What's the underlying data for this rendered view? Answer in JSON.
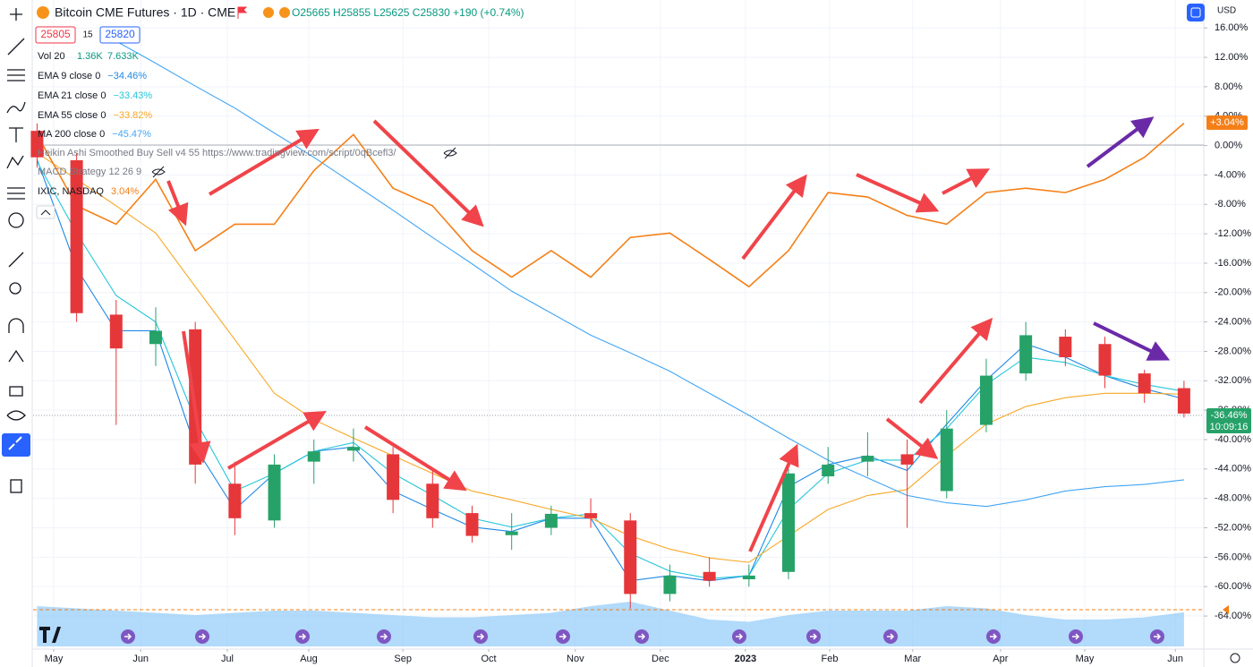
{
  "header": {
    "title": "Bitcoin CME Futures · 1D · CME",
    "ohlc": "O25665 H25855 L25625 C25830 +190 (+0.74%)",
    "sell": "25805",
    "spread": "15",
    "buy": "25820",
    "currency": "USD",
    "indicators": [
      "Heikin Ashi Smoothed Buy Sell v4 55 https://www.tradingview.com/script/0qBcefl3/",
      "MACD Strategy 12 26 9"
    ],
    "price_tags": [
      "+3.04%",
      "-36.46%",
      "10:09:16"
    ]
  },
  "chart_data": {
    "type": "candlestick",
    "ylim": [
      -68.5,
      19.8
    ],
    "xlim": [
      -0.1,
      29.5
    ],
    "yticks": [
      {
        "value": 16,
        "label": "16.00%"
      },
      {
        "value": 12,
        "label": "12.00%"
      },
      {
        "value": 8,
        "label": "8.00%"
      },
      {
        "value": 4,
        "label": "4.00%"
      },
      {
        "value": 0,
        "label": "0.00%"
      },
      {
        "value": -4,
        "label": "-4.00%"
      },
      {
        "value": -8,
        "label": "-8.00%"
      },
      {
        "value": -12,
        "label": "-12.00%"
      },
      {
        "value": -16,
        "label": "-16.00%"
      },
      {
        "value": -20,
        "label": "-20.00%"
      },
      {
        "value": -24,
        "label": "-24.00%"
      },
      {
        "value": -28,
        "label": "-28.00%"
      },
      {
        "value": -32,
        "label": "-32.00%"
      },
      {
        "value": -36,
        "label": "-36.00%"
      },
      {
        "value": -40,
        "label": "-40.00%"
      },
      {
        "value": -44,
        "label": "-44.00%"
      },
      {
        "value": -48,
        "label": "-48.00%"
      },
      {
        "value": -52,
        "label": "-52.00%"
      },
      {
        "value": -56,
        "label": "-56.00%"
      },
      {
        "value": -60,
        "label": "-60.00%"
      },
      {
        "value": -64,
        "label": "-64.00%"
      }
    ],
    "xticks": [
      {
        "value": 0.42,
        "label": "May"
      },
      {
        "value": 2.62,
        "label": "Jun"
      },
      {
        "value": 4.81,
        "label": "Jul"
      },
      {
        "value": 6.87,
        "label": "Aug"
      },
      {
        "value": 9.25,
        "label": "Sep"
      },
      {
        "value": 11.42,
        "label": "Oct"
      },
      {
        "value": 13.61,
        "label": "Nov"
      },
      {
        "value": 15.76,
        "label": "Dec"
      },
      {
        "value": 17.91,
        "label": "2023"
      },
      {
        "value": 20.04,
        "label": "Feb"
      },
      {
        "value": 22.14,
        "label": "Mar"
      },
      {
        "value": 24.36,
        "label": "Apr"
      },
      {
        "value": 26.49,
        "label": "May"
      },
      {
        "value": 28.78,
        "label": "Jun"
      }
    ],
    "grid": true,
    "candles": {
      "up_color": "#26a269",
      "down_color": "#e5373a",
      "open": [
        2,
        -2,
        -23,
        -27,
        -25,
        -46,
        -51,
        -43,
        -41.5,
        -42,
        -46,
        -50,
        -53,
        -52,
        -50,
        -51,
        -61,
        -58,
        -59,
        -58,
        -45,
        -43,
        -42,
        -47,
        -38,
        -31,
        -26,
        -27,
        -31,
        -33
      ],
      "high": [
        3,
        -1,
        -21,
        -22,
        -24,
        -43,
        -42,
        -40,
        -38.5,
        -41,
        -44,
        -49,
        -50,
        -49,
        -48,
        -50,
        -57,
        -56,
        -57,
        -44,
        -41,
        -39,
        -40,
        -36,
        -29,
        -24,
        -25,
        -26,
        -30.5,
        -32
      ],
      "low": [
        -3,
        -24,
        -38,
        -30,
        -46,
        -53,
        -52,
        -46,
        -43,
        -50,
        -52,
        -54,
        -55,
        -53,
        -52,
        -63,
        -62,
        -60,
        -60,
        -59,
        -46,
        -45,
        -52,
        -48,
        -39,
        -32,
        -30,
        -33,
        -35,
        -37
      ],
      "close": [
        -1.6,
        -22.8,
        -27.6,
        -25.2,
        -43.4,
        -50.7,
        -43.4,
        -41.6,
        -41,
        -48.2,
        -50.7,
        -53.1,
        -52.5,
        -50.1,
        -50.7,
        -61,
        -58.5,
        -59.2,
        -58.5,
        -44.6,
        -43.4,
        -42.2,
        -43.4,
        -38.5,
        -31.3,
        -25.8,
        -28.8,
        -31.3,
        -33.7,
        -36.46
      ]
    },
    "volume": {
      "name": "Vol 20",
      "labels": [
        "1.36K",
        "7.633K"
      ],
      "color": "#90caf9",
      "vlim": [
        0,
        30
      ],
      "values": [
        9,
        8.5,
        8,
        7.5,
        7,
        7.5,
        8,
        8,
        7.5,
        7,
        6.5,
        6.5,
        7,
        7.5,
        9,
        10,
        8,
        6,
        5.5,
        7,
        8,
        8,
        8,
        9,
        8.5,
        7,
        6,
        6,
        6.5,
        7.633
      ]
    },
    "series": [
      {
        "name": "EMA 9 close 0",
        "label": "−34.46%",
        "color": "#1e88e5",
        "values": [
          -1.9,
          -16.7,
          -25.2,
          -25.2,
          -41,
          -49.5,
          -44.6,
          -41.6,
          -41,
          -47,
          -49.5,
          -51.9,
          -52.5,
          -50.7,
          -50.7,
          -59.2,
          -58.5,
          -59.2,
          -58.5,
          -46.4,
          -43.4,
          -42.2,
          -44.2,
          -37.9,
          -31.9,
          -27,
          -28.8,
          -31.3,
          -33.1,
          -34.46
        ]
      },
      {
        "name": "EMA 21 close 0",
        "label": "−33.43%",
        "color": "#26c6da",
        "values": [
          -2.2,
          -11.9,
          -20.4,
          -24,
          -37.3,
          -47,
          -44.6,
          -41.6,
          -40.4,
          -44.6,
          -47.6,
          -50.7,
          -51.9,
          -50.7,
          -50.1,
          -55.5,
          -57.9,
          -58.9,
          -58.5,
          -49.5,
          -44.6,
          -42.8,
          -42.8,
          -38.5,
          -32.5,
          -28.8,
          -29.5,
          -31.3,
          -32.5,
          -33.43
        ]
      },
      {
        "name": "EMA 55 close 0",
        "label": "−33.82%",
        "color": "#f9a825",
        "values": [
          -1,
          -4.6,
          -8.2,
          -11.9,
          -19.2,
          -26.4,
          -33.7,
          -37.3,
          -39.8,
          -42.2,
          -44.6,
          -47,
          -48.2,
          -49.5,
          -50.7,
          -53.1,
          -54.9,
          -56.1,
          -56.7,
          -53.1,
          -49.5,
          -47.6,
          -46.8,
          -42.2,
          -37.9,
          -35.5,
          -34.3,
          -33.7,
          -33.7,
          -33.82
        ]
      },
      {
        "name": "MA 200 close 0",
        "label": "−45.47%",
        "color": "#42a5f5",
        "values": [
          null,
          null,
          14.2,
          11.2,
          8.1,
          5.1,
          1.7,
          -1.6,
          -5.2,
          -8.8,
          -12.5,
          -16.1,
          -19.8,
          -22.8,
          -25.8,
          -28.2,
          -30.7,
          -33.7,
          -36.7,
          -39.8,
          -42.8,
          -45.2,
          -47.6,
          -48.6,
          -49.1,
          -48.2,
          -47,
          -46.4,
          -46.1,
          -45.47
        ]
      },
      {
        "name": "IXIC, NASDAQ",
        "label": "3.04%",
        "color": "#f57f17",
        "values": [
          1.5,
          -8.2,
          -10.7,
          -4.6,
          -14.3,
          -10.7,
          -10.7,
          -3.4,
          1.5,
          -5.8,
          -8.2,
          -14.3,
          -17.9,
          -14.3,
          -17.9,
          -12.5,
          -11.9,
          -15.5,
          -19.2,
          -14.3,
          -6.4,
          -7,
          -9.5,
          -10.7,
          -6.4,
          -5.8,
          -6.4,
          -4.6,
          -1.6,
          3.04
        ]
      }
    ]
  }
}
